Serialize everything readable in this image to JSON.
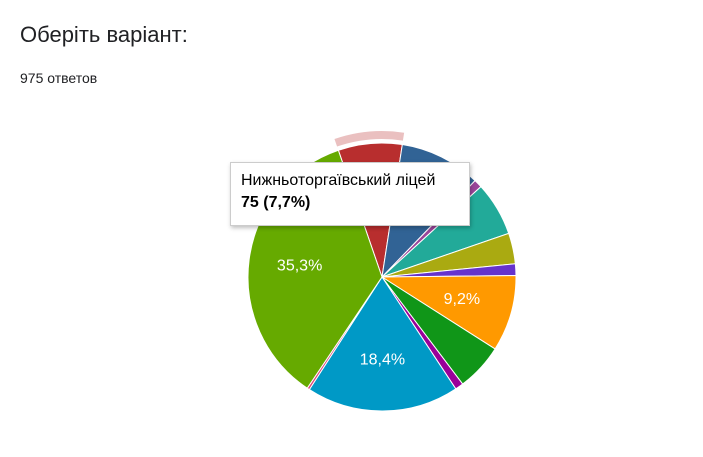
{
  "header": {
    "title": "Оберіть варіант:",
    "subtitle": "975 ответов"
  },
  "chart_data": {
    "type": "pie",
    "categories": [
      "Нижньоторгаївський ліцей",
      null,
      null,
      null,
      null,
      null,
      null,
      null,
      null,
      null,
      null,
      null
    ],
    "values": [
      7.7,
      9.8,
      1,
      6.5,
      3.7,
      1.4,
      9.2,
      5.7,
      1,
      18.4,
      0.3,
      35.3
    ],
    "value_labels": [
      null,
      null,
      null,
      null,
      null,
      null,
      "9,2%",
      null,
      null,
      "18,4%",
      null,
      "35,3%"
    ],
    "colors": [
      "#b82e2e",
      "#316395",
      "#994499",
      "#22aa99",
      "#aaaa11",
      "#6633cc",
      "#ff9900",
      "#109618",
      "#990099",
      "#0099c6",
      "#dd4477",
      "#66aa00"
    ],
    "tooltip": {
      "title": "Нижньоторгаївський ліцей",
      "text": "75 (7,7%)"
    }
  }
}
